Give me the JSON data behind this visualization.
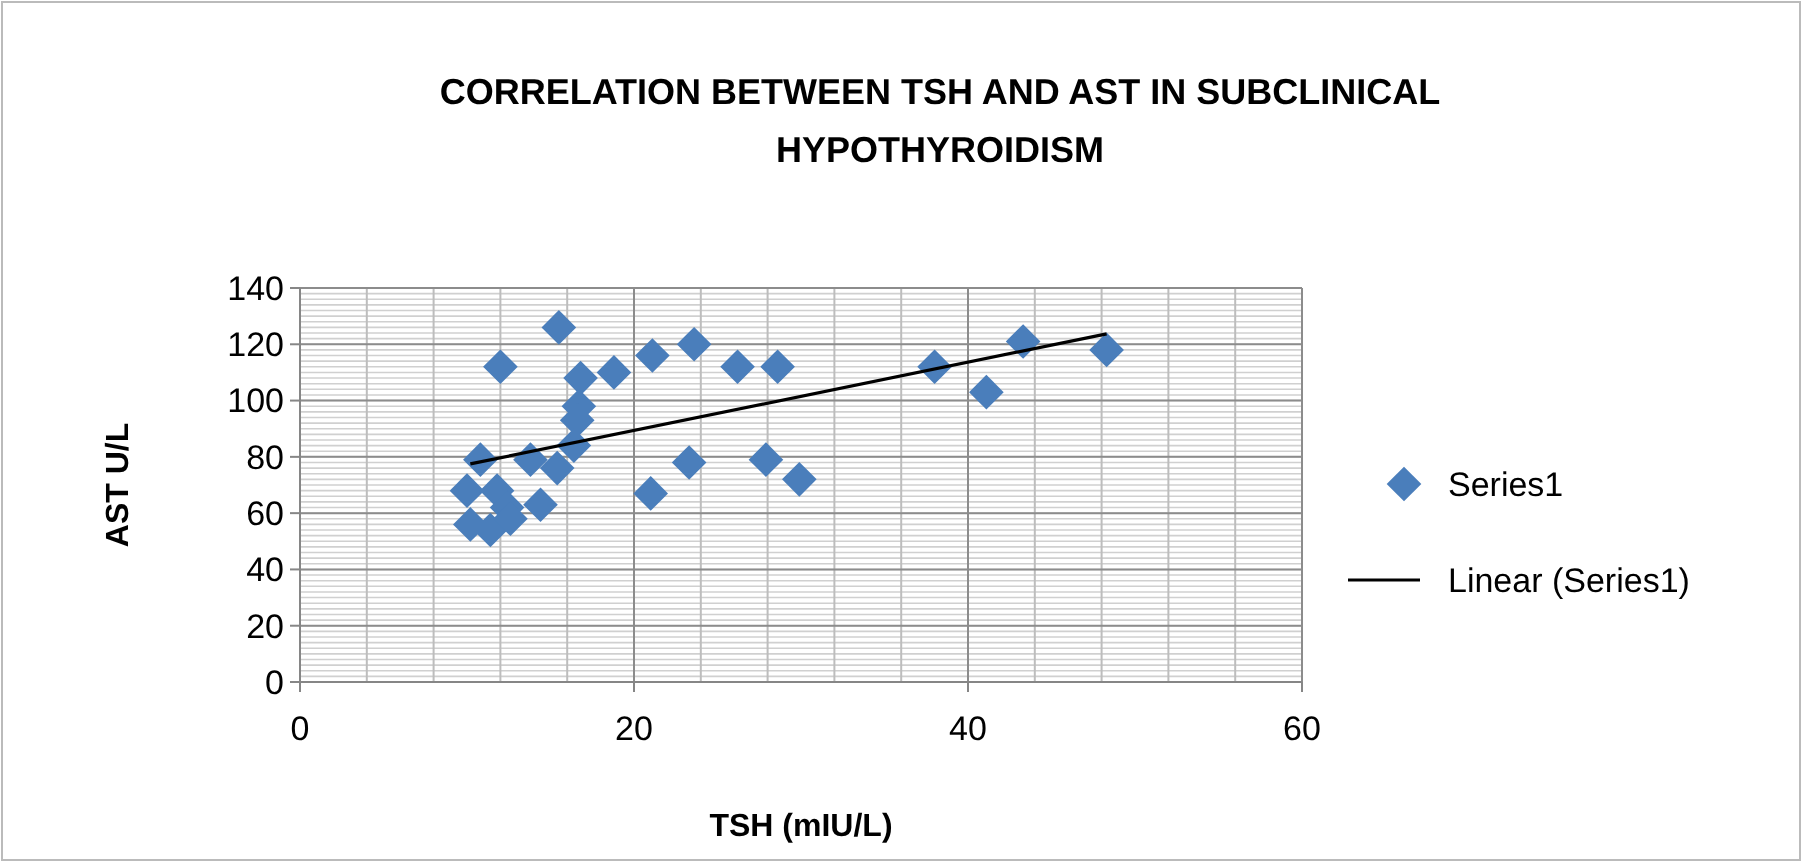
{
  "chart_data": {
    "type": "scatter",
    "title": "CORRELATION BETWEEN TSH AND AST IN SUBCLINICAL HYPOTHYROIDISM",
    "xlabel": "TSH (mIU/L)",
    "ylabel": "AST U/L",
    "xlim": [
      0,
      60
    ],
    "xticks": [
      0,
      20,
      40,
      60
    ],
    "ylim": [
      0,
      140
    ],
    "yticks": [
      0,
      20,
      40,
      60,
      80,
      100,
      120,
      140
    ],
    "grid": true,
    "legend": "right",
    "marker": "diamond",
    "series": [
      {
        "name": "Series1",
        "color": "#4a7ebb",
        "x": [
          15.5,
          12,
          16.8,
          18.8,
          21.1,
          23.6,
          26.2,
          28.6,
          16.7,
          16.6,
          16.4,
          10.8,
          13.8,
          15.4,
          10,
          11.8,
          12.4,
          14.4,
          10.2,
          11.4,
          12.6,
          21,
          23.3,
          27.9,
          29.9,
          38,
          41.1,
          43.3,
          48.3
        ],
        "values": [
          126,
          112,
          108,
          110,
          116,
          120,
          112,
          112,
          98,
          93,
          84,
          79,
          79,
          76,
          68,
          68,
          62,
          63,
          56,
          54,
          58,
          67,
          78,
          79,
          72,
          112,
          103,
          121,
          118
        ]
      },
      {
        "name": "Linear (Series1)",
        "color": "#000000",
        "type": "line",
        "marker": "none",
        "x": [
          10.2,
          48.3
        ],
        "values": [
          77.5,
          123.7
        ]
      }
    ]
  }
}
